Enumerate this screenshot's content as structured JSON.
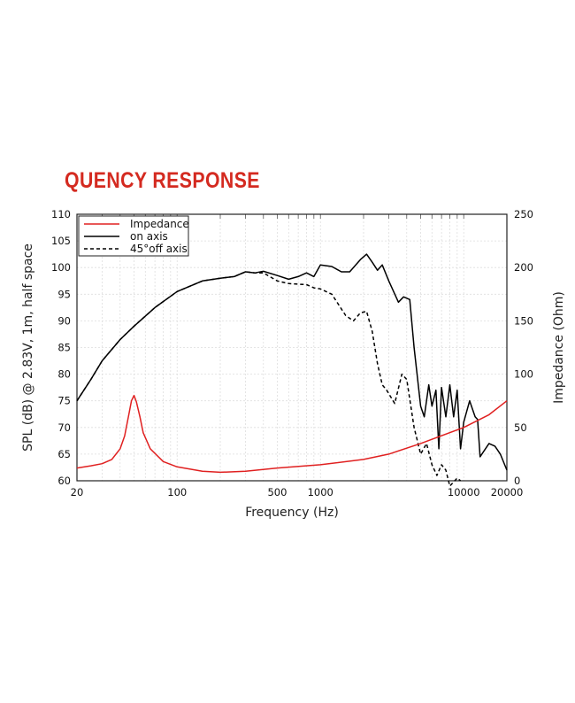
{
  "page_title": "QUENCY RESPONSE",
  "chart_data": {
    "type": "line",
    "title": "",
    "xlabel": "Frequency (Hz)",
    "ylabel": "SPL (dB) @ 2.83V, 1m, half space",
    "y2label": "Impedance (Ohm)",
    "xscale": "log",
    "xlim": [
      20,
      20000
    ],
    "ylim": [
      60,
      110
    ],
    "y2lim": [
      0,
      250
    ],
    "xticks": [
      20,
      100,
      500,
      1000,
      10000,
      20000
    ],
    "yticks": [
      60,
      65,
      70,
      75,
      80,
      85,
      90,
      95,
      100,
      105,
      110
    ],
    "y2ticks": [
      0,
      50,
      100,
      150,
      200,
      250
    ],
    "grid": true,
    "legend_position": "top-left",
    "series": [
      {
        "name": "Impedance",
        "axis": "right",
        "color": "#e02020",
        "style": "solid",
        "x": [
          20,
          25,
          30,
          35,
          40,
          43,
          46,
          48,
          50,
          52,
          55,
          58,
          65,
          80,
          100,
          150,
          200,
          300,
          500,
          1000,
          2000,
          3000,
          5000,
          10000,
          15000,
          20000
        ],
        "y": [
          12,
          14,
          16,
          20,
          30,
          42,
          62,
          75,
          80,
          74,
          60,
          45,
          30,
          18,
          13,
          9,
          8,
          9,
          12,
          15,
          20,
          25,
          35,
          50,
          62,
          75
        ]
      },
      {
        "name": "on axis",
        "axis": "left",
        "color": "#000000",
        "style": "solid",
        "x": [
          20,
          25,
          30,
          40,
          50,
          70,
          100,
          150,
          200,
          250,
          300,
          350,
          400,
          500,
          600,
          700,
          800,
          900,
          1000,
          1200,
          1400,
          1600,
          1900,
          2100,
          2300,
          2500,
          2700,
          3000,
          3500,
          3800,
          4200,
          4500,
          5000,
          5300,
          5700,
          6000,
          6400,
          6700,
          7000,
          7500,
          8000,
          8500,
          9000,
          9500,
          10000,
          11000,
          12000,
          12500,
          13000,
          15000,
          16500,
          18000,
          20000
        ],
        "y": [
          75,
          79,
          82.5,
          86.5,
          89,
          92.5,
          95.5,
          97.5,
          98,
          98.3,
          99.2,
          99,
          99.3,
          98.5,
          97.8,
          98.3,
          99,
          98.3,
          100.5,
          100.2,
          99.2,
          99.2,
          101.5,
          102.5,
          101,
          99.5,
          100.5,
          97.5,
          93.5,
          94.5,
          94,
          85,
          74,
          72,
          78,
          74,
          77,
          66,
          77.5,
          72,
          78,
          72,
          77,
          66,
          71,
          75,
          72,
          71.5,
          64.5,
          67,
          66.5,
          65,
          62
        ]
      },
      {
        "name": "45°off axis",
        "axis": "left",
        "color": "#000000",
        "style": "dashed",
        "x": [
          20,
          25,
          30,
          40,
          50,
          70,
          100,
          150,
          200,
          250,
          300,
          350,
          400,
          500,
          600,
          800,
          900,
          1000,
          1200,
          1500,
          1700,
          1900,
          2100,
          2300,
          2500,
          2700,
          2900,
          3300,
          3700,
          4000,
          4500,
          5000,
          5500,
          6000,
          6500,
          7000,
          7500,
          8000,
          9000,
          9500
        ],
        "y": [
          75,
          79,
          82.5,
          86.5,
          89,
          92.5,
          95.5,
          97.5,
          98,
          98.3,
          99.2,
          99,
          99,
          97.5,
          97,
          96.8,
          96.2,
          96,
          95,
          91,
          90,
          91.5,
          91.8,
          88,
          82,
          78,
          77,
          74.5,
          80,
          79,
          70,
          65,
          67,
          63,
          61,
          63,
          62,
          59,
          60.5,
          60
        ]
      }
    ]
  }
}
